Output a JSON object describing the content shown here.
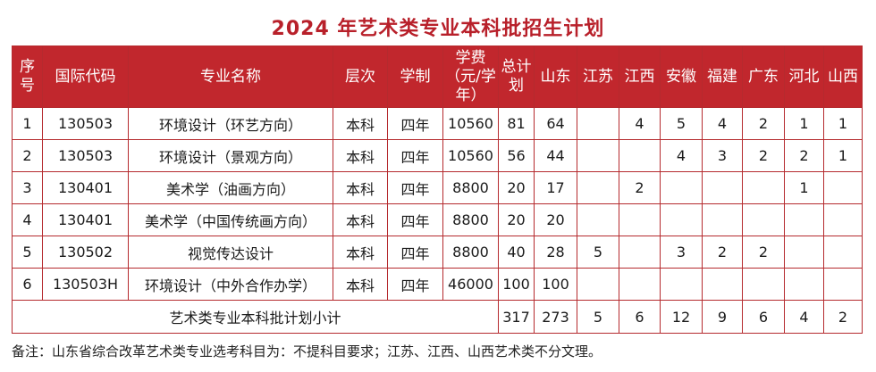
{
  "title": "2024 年艺术类专业本科批招生计划",
  "table": {
    "headers": {
      "index": "序号",
      "code": "国际代码",
      "major": "专业名称",
      "level": "层次",
      "duration": "学制",
      "fee": "学费（元/学年）",
      "total": "总计划",
      "shandong": "山东",
      "jiangsu": "江苏",
      "jiangxi": "江西",
      "anhui": "安徽",
      "fujian": "福建",
      "guangdong": "广东",
      "hebei": "河北",
      "shanxi": "山西"
    },
    "rows": [
      {
        "index": "1",
        "code": "130503",
        "major": "环境设计（环艺方向）",
        "level": "本科",
        "duration": "四年",
        "fee": "10560",
        "total": "81",
        "shandong": "64",
        "jiangsu": "",
        "jiangxi": "4",
        "anhui": "5",
        "fujian": "4",
        "guangdong": "2",
        "hebei": "1",
        "shanxi": "1"
      },
      {
        "index": "2",
        "code": "130503",
        "major": "环境设计（景观方向）",
        "level": "本科",
        "duration": "四年",
        "fee": "10560",
        "total": "56",
        "shandong": "44",
        "jiangsu": "",
        "jiangxi": "",
        "anhui": "4",
        "fujian": "3",
        "guangdong": "2",
        "hebei": "2",
        "shanxi": "1"
      },
      {
        "index": "3",
        "code": "130401",
        "major": "美术学（油画方向）",
        "level": "本科",
        "duration": "四年",
        "fee": "8800",
        "total": "20",
        "shandong": "17",
        "jiangsu": "",
        "jiangxi": "2",
        "anhui": "",
        "fujian": "",
        "guangdong": "",
        "hebei": "1",
        "shanxi": ""
      },
      {
        "index": "4",
        "code": "130401",
        "major": "美术学（中国传统画方向）",
        "level": "本科",
        "duration": "四年",
        "fee": "8800",
        "total": "20",
        "shandong": "20",
        "jiangsu": "",
        "jiangxi": "",
        "anhui": "",
        "fujian": "",
        "guangdong": "",
        "hebei": "",
        "shanxi": ""
      },
      {
        "index": "5",
        "code": "130502",
        "major": "视觉传达设计",
        "level": "本科",
        "duration": "四年",
        "fee": "8800",
        "total": "40",
        "shandong": "28",
        "jiangsu": "5",
        "jiangxi": "",
        "anhui": "3",
        "fujian": "2",
        "guangdong": "2",
        "hebei": "",
        "shanxi": ""
      },
      {
        "index": "6",
        "code": "130503H",
        "major": "环境设计（中外合作办学）",
        "level": "本科",
        "duration": "四年",
        "fee": "46000",
        "total": "100",
        "shandong": "100",
        "jiangsu": "",
        "jiangxi": "",
        "anhui": "",
        "fujian": "",
        "guangdong": "",
        "hebei": "",
        "shanxi": ""
      }
    ],
    "subtotal": {
      "label": "艺术类专业本科批计划小计",
      "total": "317",
      "shandong": "273",
      "jiangsu": "5",
      "jiangxi": "6",
      "anhui": "12",
      "fujian": "9",
      "guangdong": "6",
      "hebei": "4",
      "shanxi": "2"
    }
  },
  "note": "备注：山东省综合改革艺术类专业选考科目为：不提科目要求；江苏、江西、山西艺术类不分文理。",
  "colors": {
    "header_bg": "#c1272d",
    "title": "#b8202a",
    "border": "#b52a2e"
  }
}
